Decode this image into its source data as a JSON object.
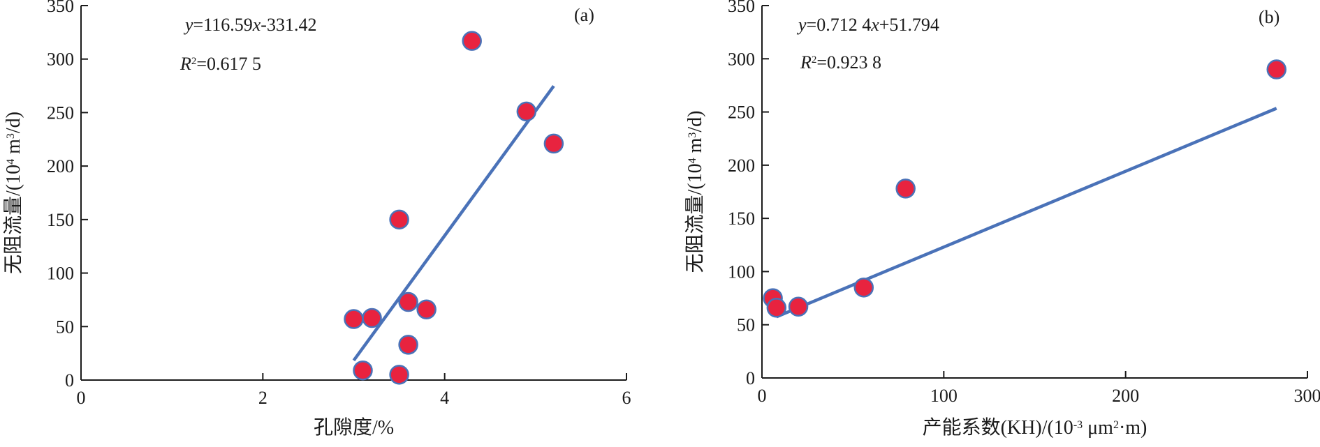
{
  "colors": {
    "axis": "#1a1a1a",
    "trendline": "#4a72b8",
    "marker_fill": "#e8233f",
    "marker_stroke": "#4a72b8"
  },
  "chart_data": [
    {
      "type": "scatter",
      "panel_label": "(a)",
      "equation": {
        "prefix": "y",
        "rest": "=116.59",
        "x": "x",
        "tail": "-331.42"
      },
      "r2": {
        "R": "R",
        "sup": "2",
        "value": "=0.617 5"
      },
      "xlabel": "孔隙度/%",
      "ylabel": {
        "pre": "无阻流量/(10",
        "sup1": "4",
        "mid": " m",
        "sup2": "3",
        "post": "/d)"
      },
      "xlim": [
        0,
        6
      ],
      "ylim": [
        0,
        350
      ],
      "xticks": [
        0,
        2,
        4,
        6
      ],
      "yticks": [
        0,
        50,
        100,
        150,
        200,
        250,
        300,
        350
      ],
      "grid": false,
      "points": [
        {
          "x": 3.0,
          "y": 57
        },
        {
          "x": 3.2,
          "y": 58
        },
        {
          "x": 3.1,
          "y": 9
        },
        {
          "x": 3.5,
          "y": 5
        },
        {
          "x": 3.6,
          "y": 33
        },
        {
          "x": 3.6,
          "y": 73
        },
        {
          "x": 3.8,
          "y": 66
        },
        {
          "x": 3.5,
          "y": 150
        },
        {
          "x": 4.3,
          "y": 317
        },
        {
          "x": 4.9,
          "y": 251
        },
        {
          "x": 5.2,
          "y": 221
        }
      ],
      "trendline": {
        "slope": 116.59,
        "intercept": -331.42,
        "x_range": [
          3.0,
          5.2
        ]
      }
    },
    {
      "type": "scatter",
      "panel_label": "(b)",
      "equation": {
        "prefix": "y",
        "rest": "=0.712 4",
        "x": "x",
        "tail": "+51.794"
      },
      "r2": {
        "R": "R",
        "sup": "2",
        "value": "=0.923 8"
      },
      "xlabel": {
        "pre": "产能系数(KH)/(10",
        "sup1": "-3",
        "mid": "  μm",
        "sup2": "2",
        "post": "·m)"
      },
      "ylabel": {
        "pre": "无阻流量/(10",
        "sup1": "4",
        "mid": " m",
        "sup2": "3",
        "post": "/d)"
      },
      "xlim": [
        0,
        300
      ],
      "ylim": [
        0,
        350
      ],
      "xticks": [
        0,
        100,
        200,
        300
      ],
      "yticks": [
        0,
        50,
        100,
        150,
        200,
        250,
        300,
        350
      ],
      "grid": false,
      "points": [
        {
          "x": 6,
          "y": 75
        },
        {
          "x": 8,
          "y": 66
        },
        {
          "x": 20,
          "y": 67
        },
        {
          "x": 56,
          "y": 85
        },
        {
          "x": 79,
          "y": 178
        },
        {
          "x": 283,
          "y": 290
        }
      ],
      "trendline": {
        "slope": 0.7124,
        "intercept": 51.794,
        "x_range": [
          8,
          283
        ]
      }
    }
  ]
}
